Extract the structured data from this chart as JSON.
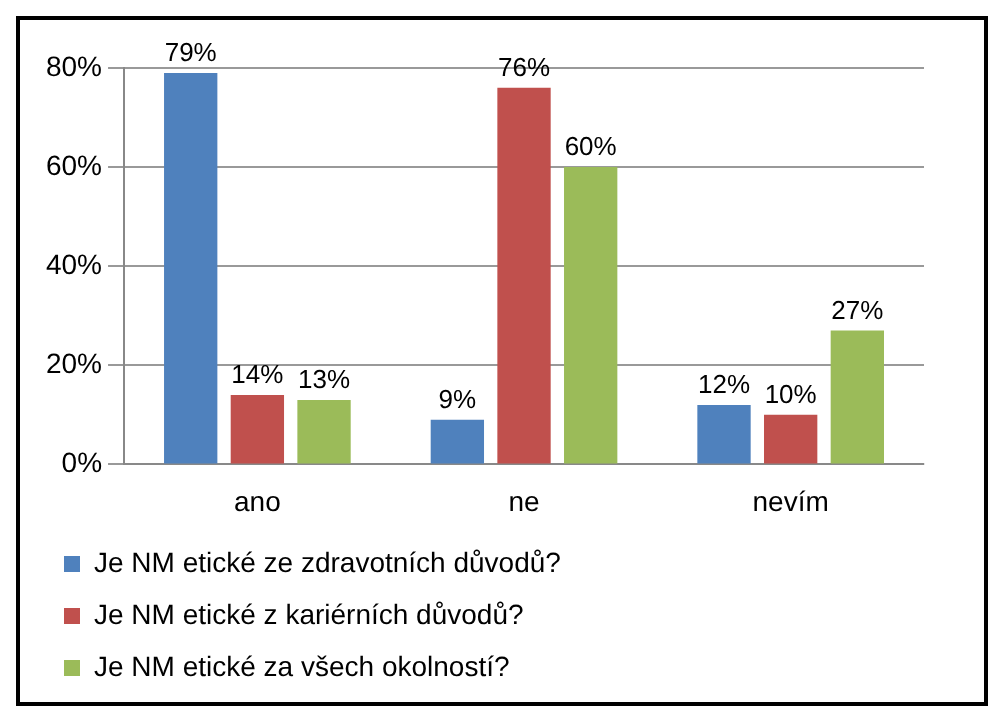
{
  "chart_data": {
    "type": "bar",
    "categories": [
      "ano",
      "ne",
      "nevím"
    ],
    "series": [
      {
        "name": "Je NM etické ze zdravotních důvodů?",
        "color": "#4f81bd",
        "values": [
          79,
          9,
          12
        ],
        "value_labels": [
          "79%",
          "9%",
          "12%"
        ]
      },
      {
        "name": "Je NM etické z kariérních důvodů?",
        "color": "#c0504d",
        "values": [
          14,
          76,
          10
        ],
        "value_labels": [
          "14%",
          "76%",
          "10%"
        ]
      },
      {
        "name": "Je NM etické za všech okolností?",
        "color": "#9bbb59",
        "values": [
          13,
          60,
          27
        ],
        "value_labels": [
          "13%",
          "60%",
          "27%"
        ]
      }
    ],
    "ylim": [
      0,
      80
    ],
    "yticks": [
      {
        "value": 0,
        "label": "0%"
      },
      {
        "value": 20,
        "label": "20%"
      },
      {
        "value": 40,
        "label": "40%"
      },
      {
        "value": 60,
        "label": "60%"
      },
      {
        "value": 80,
        "label": "80%"
      }
    ],
    "grid": "y",
    "legend": "bottom"
  }
}
